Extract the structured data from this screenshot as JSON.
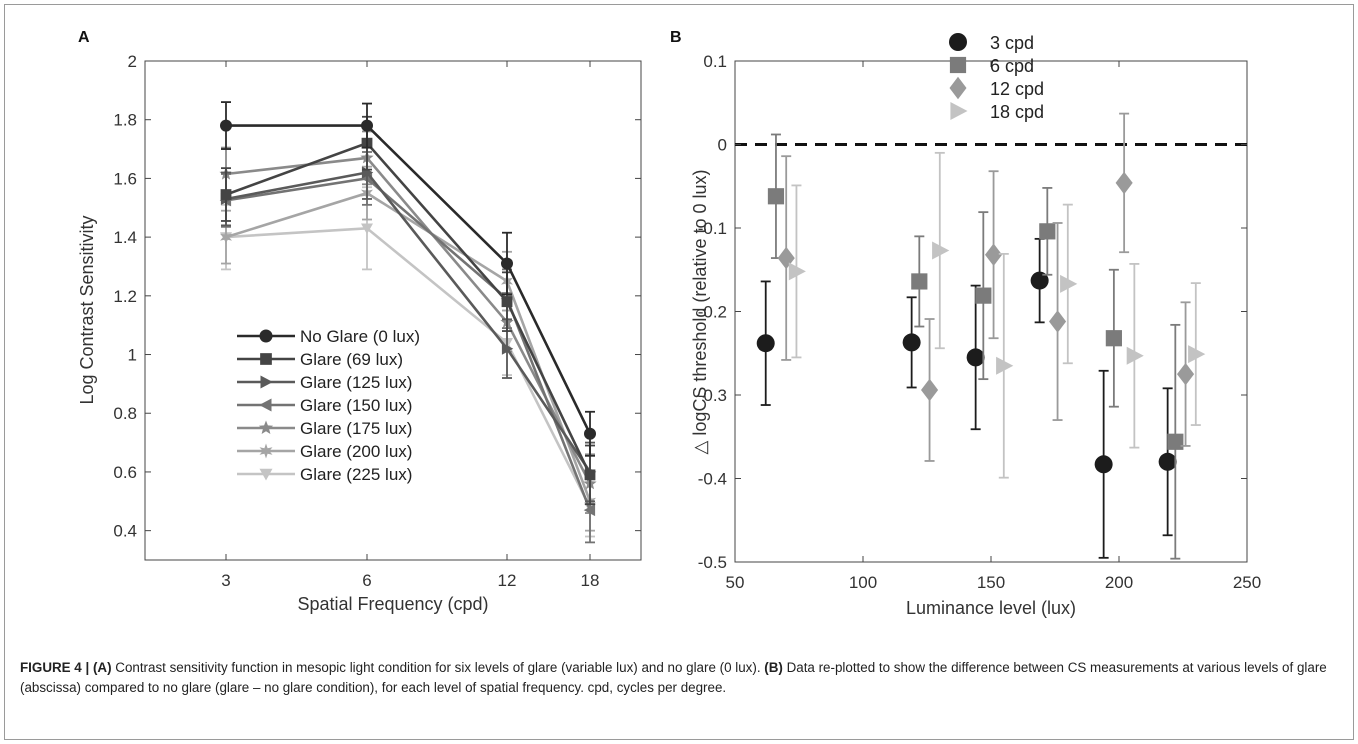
{
  "caption": {
    "figure_label": "FIGURE 4 | ",
    "part_a_label": "(A)",
    "part_a_text": " Contrast sensitivity function in mesopic light condition for six levels of glare (variable lux) and no glare (0 lux). ",
    "part_b_label": "(B)",
    "part_b_text": " Data re-plotted to show the difference between CS measurements at various levels of glare (abscissa) compared to no glare (glare – no glare condition), for each level of spatial frequency. cpd, cycles per degree."
  },
  "chart_data": [
    {
      "panel": "A",
      "type": "line",
      "xlabel": "Spatial Frequency (cpd)",
      "ylabel": "Log Contrast Sensitivity",
      "categories": [
        "3",
        "6",
        "12",
        "18"
      ],
      "ylim": [
        0.3,
        2.0
      ],
      "yticks": [
        "0.4",
        "0.6",
        "0.8",
        "1",
        "1.2",
        "1.4",
        "1.6",
        "1.8",
        "2"
      ],
      "grid": false,
      "legend_position": "lower-left",
      "series": [
        {
          "name": "No Glare (0 lux)",
          "marker": "circle",
          "color": "#2a2a2a",
          "values": [
            1.78,
            1.78,
            1.31,
            0.73
          ],
          "errors": [
            0.08,
            0.075,
            0.105,
            0.075
          ]
        },
        {
          "name": "Glare (69 lux)",
          "marker": "square",
          "color": "#444444",
          "values": [
            1.545,
            1.72,
            1.18,
            0.59
          ],
          "errors": [
            0.09,
            0.09,
            0.1,
            0.1
          ]
        },
        {
          "name": "Glare (125 lux)",
          "marker": "triangle-right",
          "color": "#5a5a5a",
          "values": [
            1.53,
            1.62,
            1.02,
            0.6
          ],
          "errors": [
            0.09,
            0.09,
            0.1,
            0.1
          ]
        },
        {
          "name": "Glare (150 lux)",
          "marker": "triangle-left",
          "color": "#737373",
          "values": [
            1.525,
            1.6,
            1.19,
            0.47
          ],
          "errors": [
            0.09,
            0.09,
            0.1,
            0.11
          ]
        },
        {
          "name": "Glare (175 lux)",
          "marker": "star",
          "color": "#8a8a8a",
          "values": [
            1.615,
            1.67,
            1.11,
            0.56
          ],
          "errors": [
            0.09,
            0.09,
            0.1,
            0.1
          ]
        },
        {
          "name": "Glare (200 lux)",
          "marker": "star6",
          "color": "#a5a5a5",
          "values": [
            1.4,
            1.55,
            1.25,
            0.5
          ],
          "errors": [
            0.09,
            0.09,
            0.1,
            0.1
          ]
        },
        {
          "name": "Glare (225 lux)",
          "marker": "triangle-down",
          "color": "#c4c4c4",
          "values": [
            1.4,
            1.43,
            1.04,
            0.48
          ],
          "errors": [
            0.11,
            0.14,
            0.11,
            0.1
          ]
        }
      ]
    },
    {
      "panel": "B",
      "type": "scatter",
      "xlabel": "Luminance level (lux)",
      "ylabel": "△ logCS threshold (relative to 0 lux)",
      "xlim": [
        50,
        250
      ],
      "ylim": [
        -0.5,
        0.1
      ],
      "xticks": [
        "50",
        "100",
        "150",
        "200",
        "250"
      ],
      "yticks": [
        "-0.5",
        "-0.4",
        "-0.3",
        "-0.2",
        "-0.1",
        "0",
        "0.1"
      ],
      "reference_line": 0,
      "grid": false,
      "legend_position": "top-center",
      "series": [
        {
          "name": "3 cpd",
          "marker": "circle",
          "color": "#1c1c1c",
          "x": [
            62,
            119,
            144,
            169,
            194,
            219
          ],
          "y": [
            -0.238,
            -0.237,
            -0.255,
            -0.163,
            -0.383,
            -0.38
          ],
          "errors": [
            0.074,
            0.054,
            0.086,
            0.05,
            0.112,
            0.088
          ]
        },
        {
          "name": "6 cpd",
          "marker": "square",
          "color": "#7b7b7b",
          "x": [
            66,
            122,
            147,
            172,
            198,
            222
          ],
          "y": [
            -0.062,
            -0.164,
            -0.181,
            -0.104,
            -0.232,
            -0.356
          ],
          "errors": [
            0.074,
            0.054,
            0.1,
            0.052,
            0.082,
            0.14
          ]
        },
        {
          "name": "12 cpd",
          "marker": "diamond",
          "color": "#9a9a9a",
          "x": [
            70,
            126,
            151,
            176,
            202,
            226
          ],
          "y": [
            -0.136,
            -0.294,
            -0.132,
            -0.212,
            -0.046,
            -0.275
          ],
          "errors": [
            0.122,
            0.085,
            0.1,
            0.118,
            0.083,
            0.086
          ]
        },
        {
          "name": "18 cpd",
          "marker": "triangle-right",
          "color": "#c3c3c3",
          "x": [
            74,
            130,
            155,
            180,
            206,
            230
          ],
          "y": [
            -0.152,
            -0.127,
            -0.265,
            -0.167,
            -0.253,
            -0.251
          ],
          "errors": [
            0.103,
            0.117,
            0.134,
            0.095,
            0.11,
            0.085
          ]
        }
      ]
    }
  ],
  "panel_labels": {
    "a": "A",
    "b": "B"
  }
}
